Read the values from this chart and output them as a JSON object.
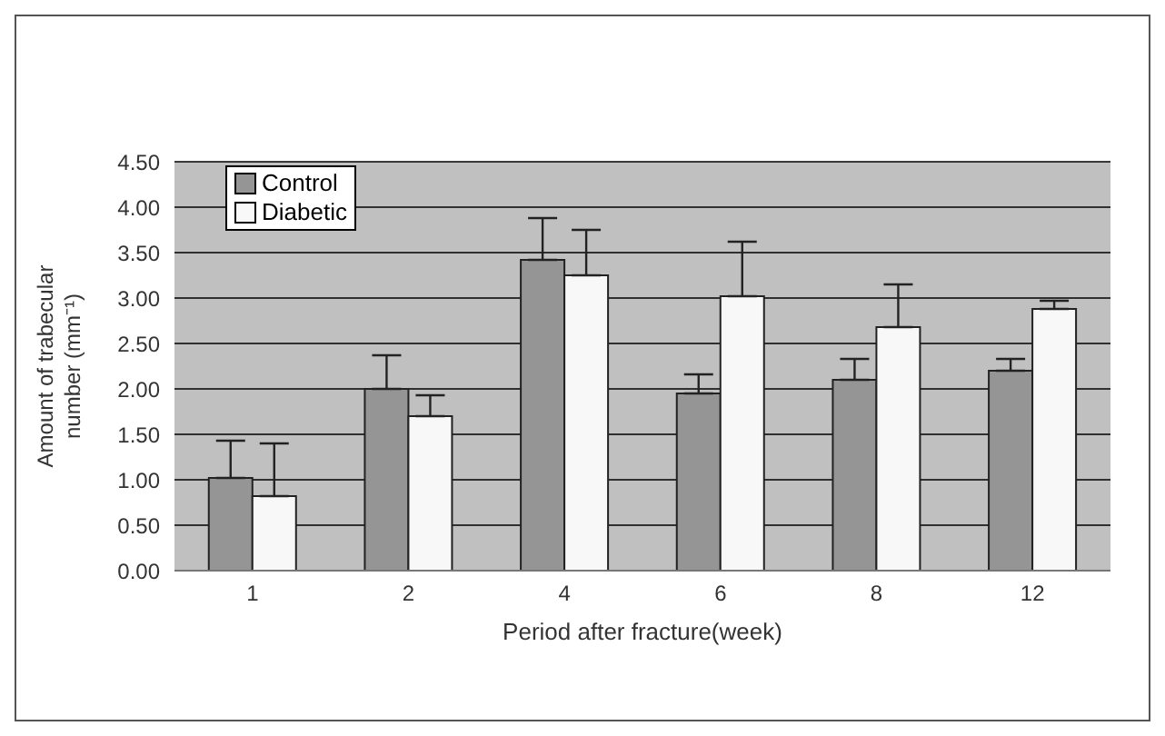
{
  "chart_data": {
    "type": "bar",
    "xlabel": "Period after fracture(week)",
    "ylabel": "Amount of trabecular number (mm⁻¹)",
    "categories": [
      "1",
      "2",
      "4",
      "6",
      "8",
      "12"
    ],
    "series": [
      {
        "name": "Control",
        "color": "#959595",
        "values": [
          1.02,
          2.0,
          3.42,
          1.95,
          2.1,
          2.2
        ],
        "errors": [
          [
            1.02,
            1.43
          ],
          [
            2.0,
            2.37
          ],
          [
            3.42,
            3.88
          ],
          [
            1.95,
            2.16
          ],
          [
            2.1,
            2.33
          ],
          [
            2.2,
            2.33
          ]
        ]
      },
      {
        "name": "Diabetic",
        "color": "#f8f8f8",
        "values": [
          0.82,
          1.7,
          3.25,
          3.02,
          2.68,
          2.88
        ],
        "errors": [
          [
            0.82,
            1.4
          ],
          [
            1.7,
            1.93
          ],
          [
            3.25,
            3.75
          ],
          [
            3.02,
            3.62
          ],
          [
            2.68,
            3.15
          ],
          [
            2.88,
            2.97
          ]
        ]
      }
    ],
    "ylim": [
      0,
      4.5
    ],
    "yticks": [
      {
        "value": 0,
        "label": "0.00"
      },
      {
        "value": 0.5,
        "label": "0.50"
      },
      {
        "value": 1,
        "label": "1.00"
      },
      {
        "value": 1.5,
        "label": "1.50"
      },
      {
        "value": 2,
        "label": "2.00"
      },
      {
        "value": 2.5,
        "label": "2.50"
      },
      {
        "value": 3,
        "label": "3.00"
      },
      {
        "value": 3.5,
        "label": "3.50"
      },
      {
        "value": 4,
        "label": "4.00"
      },
      {
        "value": 4.5,
        "label": "4.50"
      }
    ],
    "grid": "y",
    "legend": "top left"
  }
}
